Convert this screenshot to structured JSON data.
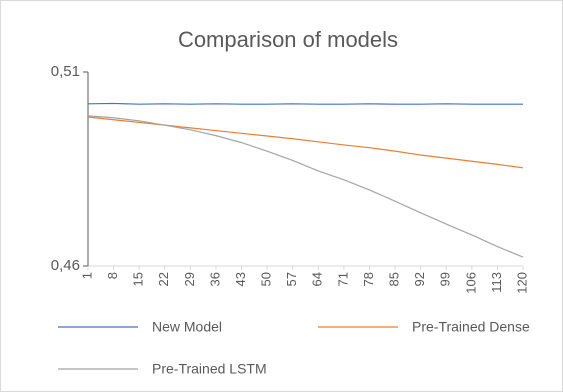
{
  "chart_data": {
    "type": "line",
    "title": "Comparison of models",
    "x": [
      1,
      8,
      15,
      22,
      29,
      36,
      43,
      50,
      57,
      64,
      71,
      78,
      85,
      92,
      99,
      106,
      113,
      120
    ],
    "xlim": [
      1,
      120
    ],
    "xticks": [
      1,
      8,
      15,
      22,
      29,
      36,
      43,
      50,
      57,
      64,
      71,
      78,
      85,
      92,
      99,
      106,
      113,
      120
    ],
    "ylim": [
      0.46,
      0.51
    ],
    "yticks": [
      {
        "value": 0.46,
        "label": "0,46"
      },
      {
        "value": 0.51,
        "label": "0,51"
      }
    ],
    "legend": "bottom",
    "series": [
      {
        "name": "New Model",
        "color": "#4472c4",
        "values": [
          0.5018,
          0.5019,
          0.5017,
          0.5018,
          0.5017,
          0.5018,
          0.5017,
          0.5017,
          0.5018,
          0.5017,
          0.5017,
          0.5018,
          0.5017,
          0.5017,
          0.5018,
          0.5017,
          0.5017,
          0.5017
        ]
      },
      {
        "name": "Pre-Trained Dense",
        "color": "#ed7d31",
        "values": [
          0.4984,
          0.4977,
          0.497,
          0.4963,
          0.4956,
          0.4949,
          0.4942,
          0.4935,
          0.4928,
          0.492,
          0.4912,
          0.4905,
          0.4896,
          0.4886,
          0.4878,
          0.487,
          0.4862,
          0.4853
        ]
      },
      {
        "name": "Pre-Trained LSTM",
        "color": "#a5a5a5",
        "values": [
          0.4987,
          0.4982,
          0.4974,
          0.4963,
          0.4951,
          0.4936,
          0.4918,
          0.4896,
          0.4872,
          0.4845,
          0.4822,
          0.4796,
          0.4767,
          0.4737,
          0.4708,
          0.468,
          0.465,
          0.4623
        ]
      }
    ]
  }
}
